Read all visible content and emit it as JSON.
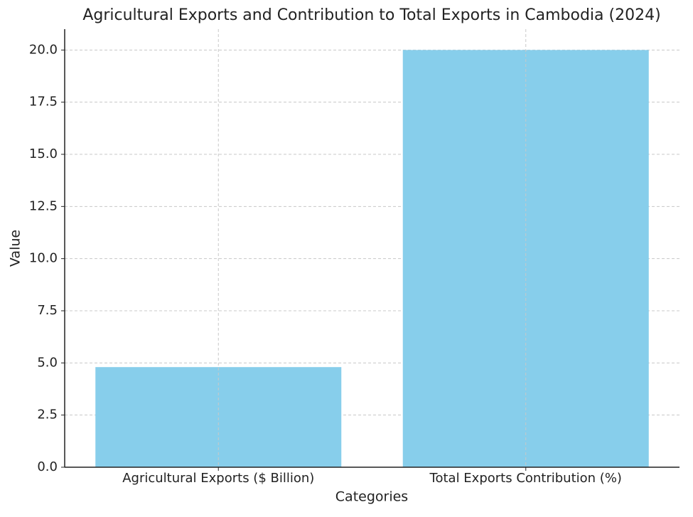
{
  "chart_data": {
    "type": "bar",
    "title": "Agricultural Exports and Contribution to Total Exports in Cambodia (2024)",
    "x_label": "Categories",
    "y_label": "Value",
    "categories": [
      "Agricultural Exports ($ Billion)",
      "Total Exports Contribution (%)"
    ],
    "values": [
      4.8,
      20.0
    ],
    "color": "#87ceeb",
    "ylim": [
      0,
      21
    ],
    "yticks": [
      {
        "value": 0,
        "label": "0.0"
      },
      2.5,
      {
        "value": 5,
        "label": "5.0"
      },
      7.5,
      {
        "value": 10,
        "label": "10.0"
      },
      12.5,
      {
        "value": 15,
        "label": "15.0"
      },
      17.5,
      {
        "value": 20,
        "label": "20.0"
      }
    ],
    "grid": true
  }
}
